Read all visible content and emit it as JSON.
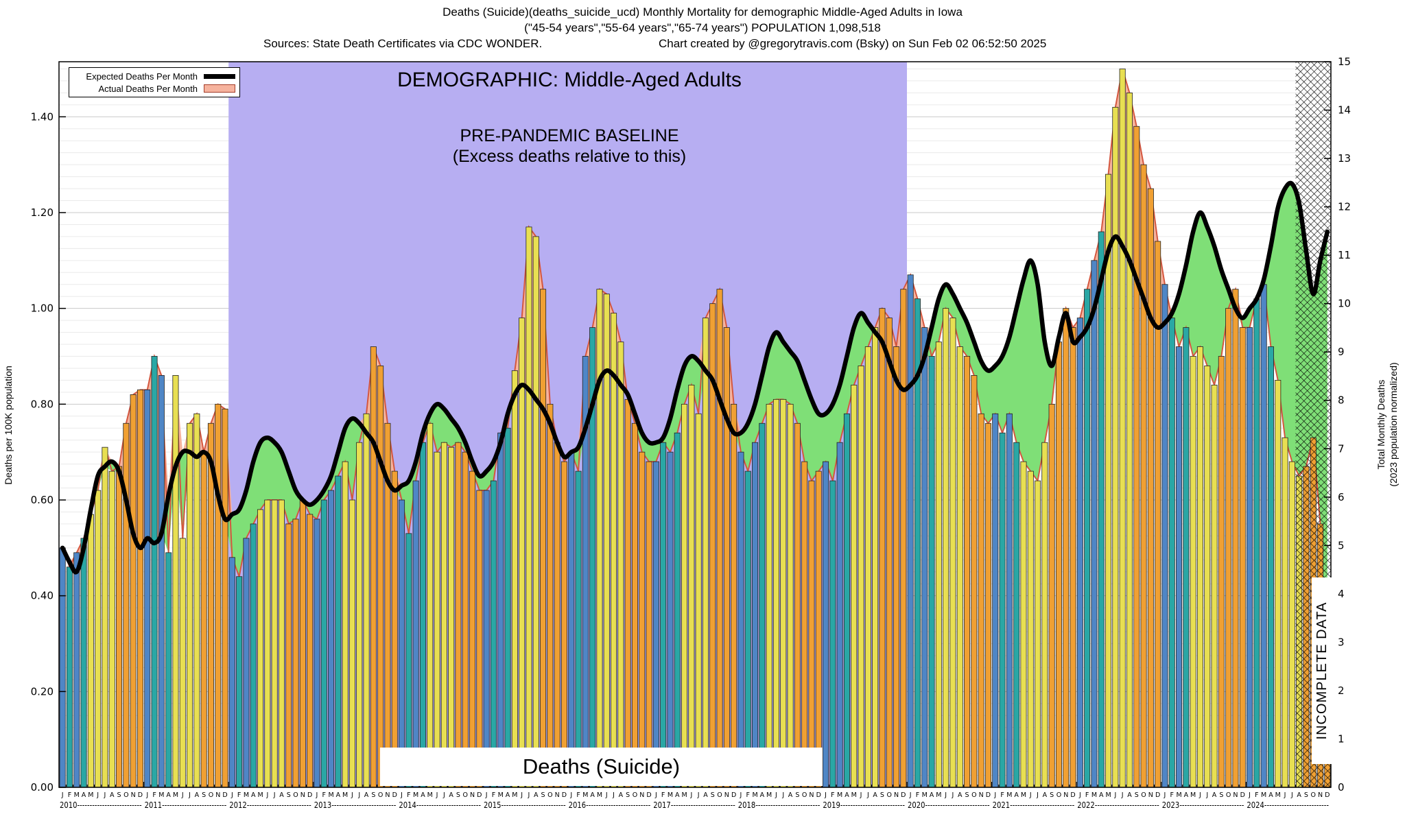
{
  "header": {
    "line1": "Deaths (Suicide)(deaths_suicide_ucd) Monthly Mortality for demographic Middle-Aged Adults in Iowa",
    "line2": "(\"45-54 years\",\"55-64 years\",\"65-74 years\") POPULATION 1,098,518",
    "sources": "Sources: State Death Certificates via CDC WONDER.",
    "credit": "Chart created by @gregorytravis.com (Bsky) on Sun Feb 02 06:52:50 2025"
  },
  "legend": {
    "expected_label": "Expected Deaths Per Month",
    "actual_label": "Actual Deaths Per Month"
  },
  "overlays": {
    "demographic": "DEMOGRAPHIC: Middle-Aged Adults",
    "baseline1": "PRE-PANDEMIC BASELINE",
    "baseline2": "(Excess deaths relative to this)",
    "bottom_label": "Deaths (Suicide)",
    "incomplete": "INCOMPLETE DATA"
  },
  "axes": {
    "left_label": "Deaths per 100K population",
    "right_label_1": "Total Monthly Deaths",
    "right_label_2": "(2023 population normalized)"
  },
  "chart_data": {
    "type": "bar",
    "title": "Deaths (Suicide) Monthly Mortality, Middle-Aged Adults, Iowa",
    "xlabel": "Month (2010-2024)",
    "ylabel_left": "Deaths per 100K population",
    "ylabel_right": "Total Monthly Deaths (2023 population normalized)",
    "left_axis_range": [
      0,
      1.5
    ],
    "right_axis_range": [
      0,
      15
    ],
    "left_ticks": [
      "0.00",
      "0.20",
      "0.40",
      "0.60",
      "0.80",
      "1.00",
      "1.20",
      "1.40"
    ],
    "right_ticks": [
      "0",
      "1",
      "2",
      "3",
      "4",
      "5",
      "6",
      "7",
      "8",
      "9",
      "10",
      "11",
      "12",
      "13",
      "14",
      "15"
    ],
    "years": [
      2010,
      2011,
      2012,
      2013,
      2014,
      2015,
      2016,
      2017,
      2018,
      2019,
      2020,
      2021,
      2022,
      2023,
      2024
    ],
    "month_letters": "JFMAMJJASOND",
    "baseline_region": {
      "start_index": 24,
      "end_index": 120
    },
    "incomplete_start_index": 175,
    "colors": {
      "baseline_fill": "#b7aef2",
      "deficit_fill": "#7fdf77",
      "excess_fill": "#f6b39e",
      "actual_outline": "#d4573f",
      "expected_line": "#000000"
    },
    "month_colors": [
      "#4f86c6",
      "#2aa7a5",
      "#4f86c6",
      "#2aa7a5",
      "#e8df52",
      "#e8df52",
      "#e8df52",
      "#e8df52",
      "#f0a033",
      "#f0a033",
      "#f0a033",
      "#f0a033"
    ],
    "series": [
      {
        "name": "Expected Deaths Per Month",
        "values": [
          0.5,
          0.47,
          0.45,
          0.5,
          0.58,
          0.65,
          0.67,
          0.68,
          0.66,
          0.6,
          0.53,
          0.5,
          0.52,
          0.51,
          0.53,
          0.61,
          0.67,
          0.7,
          0.7,
          0.69,
          0.7,
          0.68,
          0.61,
          0.56,
          0.57,
          0.58,
          0.62,
          0.68,
          0.72,
          0.73,
          0.72,
          0.7,
          0.66,
          0.62,
          0.6,
          0.59,
          0.6,
          0.62,
          0.65,
          0.7,
          0.75,
          0.77,
          0.76,
          0.74,
          0.72,
          0.68,
          0.64,
          0.62,
          0.63,
          0.64,
          0.68,
          0.74,
          0.78,
          0.8,
          0.79,
          0.77,
          0.75,
          0.72,
          0.68,
          0.65,
          0.66,
          0.68,
          0.72,
          0.78,
          0.82,
          0.84,
          0.83,
          0.81,
          0.79,
          0.76,
          0.72,
          0.69,
          0.7,
          0.71,
          0.75,
          0.8,
          0.85,
          0.87,
          0.86,
          0.84,
          0.82,
          0.78,
          0.74,
          0.72,
          0.72,
          0.73,
          0.77,
          0.83,
          0.88,
          0.9,
          0.89,
          0.87,
          0.85,
          0.81,
          0.77,
          0.74,
          0.74,
          0.76,
          0.8,
          0.86,
          0.92,
          0.95,
          0.93,
          0.91,
          0.89,
          0.85,
          0.81,
          0.78,
          0.78,
          0.8,
          0.84,
          0.9,
          0.96,
          0.99,
          0.97,
          0.95,
          0.93,
          0.89,
          0.85,
          0.83,
          0.84,
          0.86,
          0.9,
          0.96,
          1.02,
          1.05,
          1.03,
          1.0,
          0.97,
          0.93,
          0.89,
          0.87,
          0.88,
          0.9,
          0.94,
          1.0,
          1.06,
          1.1,
          1.05,
          0.93,
          0.88,
          0.94,
          0.99,
          0.93,
          0.94,
          0.96,
          1.0,
          1.06,
          1.12,
          1.15,
          1.13,
          1.1,
          1.06,
          1.02,
          0.98,
          0.96,
          0.97,
          0.99,
          1.03,
          1.09,
          1.16,
          1.2,
          1.17,
          1.13,
          1.08,
          1.04,
          1.0,
          0.98,
          1.0,
          1.02,
          1.06,
          1.13,
          1.21,
          1.25,
          1.26,
          1.22,
          1.12,
          1.03,
          1.1,
          1.16
        ]
      },
      {
        "name": "Actual Deaths Per Month",
        "values": [
          0.5,
          0.46,
          0.49,
          0.52,
          0.57,
          0.62,
          0.71,
          0.66,
          0.67,
          0.76,
          0.82,
          0.83,
          0.83,
          0.9,
          0.86,
          0.49,
          0.86,
          0.52,
          0.76,
          0.78,
          0.7,
          0.76,
          0.8,
          0.79,
          0.48,
          0.44,
          0.52,
          0.55,
          0.58,
          0.6,
          0.6,
          0.6,
          0.55,
          0.56,
          0.6,
          0.57,
          0.56,
          0.6,
          0.62,
          0.65,
          0.68,
          0.6,
          0.72,
          0.78,
          0.92,
          0.88,
          0.76,
          0.66,
          0.6,
          0.53,
          0.64,
          0.72,
          0.76,
          0.7,
          0.72,
          0.71,
          0.72,
          0.7,
          0.66,
          0.62,
          0.62,
          0.64,
          0.74,
          0.75,
          0.87,
          0.98,
          1.17,
          1.15,
          1.04,
          0.8,
          0.72,
          0.68,
          0.7,
          0.66,
          0.9,
          0.96,
          1.04,
          1.03,
          0.99,
          0.93,
          0.81,
          0.76,
          0.7,
          0.68,
          0.68,
          0.72,
          0.7,
          0.74,
          0.8,
          0.84,
          0.78,
          0.98,
          1.01,
          1.04,
          0.96,
          0.8,
          0.7,
          0.66,
          0.72,
          0.76,
          0.8,
          0.81,
          0.81,
          0.8,
          0.76,
          0.68,
          0.64,
          0.66,
          0.68,
          0.64,
          0.72,
          0.78,
          0.84,
          0.88,
          0.92,
          0.96,
          1.0,
          0.98,
          0.92,
          1.04,
          1.07,
          1.02,
          0.96,
          0.9,
          0.93,
          1.0,
          0.98,
          0.92,
          0.9,
          0.86,
          0.78,
          0.76,
          0.78,
          0.74,
          0.78,
          0.72,
          0.68,
          0.66,
          0.64,
          0.72,
          0.8,
          0.93,
          1.0,
          0.96,
          0.98,
          1.04,
          1.1,
          1.16,
          1.28,
          1.42,
          1.5,
          1.45,
          1.38,
          1.3,
          1.25,
          1.14,
          1.05,
          0.98,
          0.92,
          0.96,
          0.9,
          0.92,
          0.88,
          0.84,
          0.9,
          1.0,
          1.04,
          0.96,
          0.96,
          1.02,
          1.05,
          0.92,
          0.85,
          0.73,
          0.68,
          0.65,
          0.67,
          0.73,
          0.55,
          0.1
        ]
      }
    ]
  }
}
